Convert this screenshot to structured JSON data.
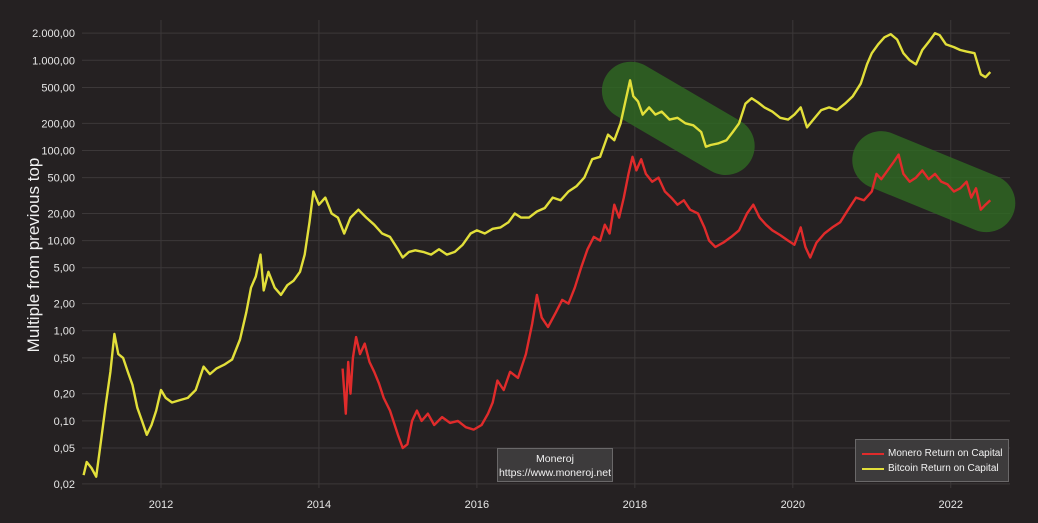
{
  "chart_data": {
    "type": "line",
    "title": "",
    "ylabel": "Multiple from previous top",
    "xlabel": "",
    "yscale": "log",
    "ylim": [
      0.018,
      2800
    ],
    "xlim": [
      2011.0,
      2022.75
    ],
    "y_ticks": [
      {
        "value": 2000,
        "label": "2.000,00"
      },
      {
        "value": 1000,
        "label": "1.000,00"
      },
      {
        "value": 500,
        "label": "500,00"
      },
      {
        "value": 200,
        "label": "200,00"
      },
      {
        "value": 100,
        "label": "100,00"
      },
      {
        "value": 50,
        "label": "50,00"
      },
      {
        "value": 20,
        "label": "20,00"
      },
      {
        "value": 10,
        "label": "10,00"
      },
      {
        "value": 5,
        "label": "5,00"
      },
      {
        "value": 2,
        "label": "2,00"
      },
      {
        "value": 1,
        "label": "1,00"
      },
      {
        "value": 0.5,
        "label": "0,50"
      },
      {
        "value": 0.2,
        "label": "0,20"
      },
      {
        "value": 0.1,
        "label": "0,10"
      },
      {
        "value": 0.05,
        "label": "0,05"
      },
      {
        "value": 0.02,
        "label": "0,02"
      }
    ],
    "x_ticks": [
      {
        "value": 2012,
        "label": "2012"
      },
      {
        "value": 2014,
        "label": "2014"
      },
      {
        "value": 2016,
        "label": "2016"
      },
      {
        "value": 2018,
        "label": "2018"
      },
      {
        "value": 2020,
        "label": "2020"
      },
      {
        "value": 2022,
        "label": "2022"
      }
    ],
    "grid": true,
    "legend_position": "bottom-right",
    "series": [
      {
        "name": "Monero Return on Capital",
        "color": "#e02b2b",
        "points": [
          [
            2014.3,
            0.38
          ],
          [
            2014.34,
            0.12
          ],
          [
            2014.37,
            0.45
          ],
          [
            2014.4,
            0.2
          ],
          [
            2014.43,
            0.5
          ],
          [
            2014.47,
            0.85
          ],
          [
            2014.52,
            0.55
          ],
          [
            2014.58,
            0.72
          ],
          [
            2014.64,
            0.45
          ],
          [
            2014.7,
            0.35
          ],
          [
            2014.76,
            0.26
          ],
          [
            2014.82,
            0.18
          ],
          [
            2014.9,
            0.13
          ],
          [
            2015.0,
            0.07
          ],
          [
            2015.06,
            0.05
          ],
          [
            2015.12,
            0.055
          ],
          [
            2015.18,
            0.1
          ],
          [
            2015.24,
            0.13
          ],
          [
            2015.3,
            0.1
          ],
          [
            2015.38,
            0.12
          ],
          [
            2015.46,
            0.09
          ],
          [
            2015.56,
            0.11
          ],
          [
            2015.66,
            0.095
          ],
          [
            2015.76,
            0.1
          ],
          [
            2015.86,
            0.085
          ],
          [
            2015.96,
            0.08
          ],
          [
            2016.06,
            0.09
          ],
          [
            2016.14,
            0.12
          ],
          [
            2016.2,
            0.16
          ],
          [
            2016.26,
            0.28
          ],
          [
            2016.34,
            0.22
          ],
          [
            2016.42,
            0.35
          ],
          [
            2016.52,
            0.3
          ],
          [
            2016.62,
            0.55
          ],
          [
            2016.7,
            1.2
          ],
          [
            2016.76,
            2.5
          ],
          [
            2016.82,
            1.4
          ],
          [
            2016.9,
            1.1
          ],
          [
            2017.0,
            1.6
          ],
          [
            2017.08,
            2.2
          ],
          [
            2017.16,
            2.0
          ],
          [
            2017.24,
            3.0
          ],
          [
            2017.32,
            5.0
          ],
          [
            2017.4,
            8.0
          ],
          [
            2017.48,
            11.0
          ],
          [
            2017.56,
            10.0
          ],
          [
            2017.62,
            15.0
          ],
          [
            2017.68,
            12.0
          ],
          [
            2017.74,
            25.0
          ],
          [
            2017.8,
            18.0
          ],
          [
            2017.86,
            30.0
          ],
          [
            2017.92,
            55.0
          ],
          [
            2017.97,
            85.0
          ],
          [
            2018.02,
            60.0
          ],
          [
            2018.08,
            80.0
          ],
          [
            2018.14,
            55.0
          ],
          [
            2018.22,
            45.0
          ],
          [
            2018.3,
            50.0
          ],
          [
            2018.38,
            35.0
          ],
          [
            2018.46,
            30.0
          ],
          [
            2018.54,
            25.0
          ],
          [
            2018.62,
            28.0
          ],
          [
            2018.7,
            22.0
          ],
          [
            2018.8,
            20.0
          ],
          [
            2018.88,
            14.0
          ],
          [
            2018.94,
            10.0
          ],
          [
            2019.02,
            8.5
          ],
          [
            2019.12,
            9.5
          ],
          [
            2019.22,
            11.0
          ],
          [
            2019.32,
            13.0
          ],
          [
            2019.42,
            20.0
          ],
          [
            2019.5,
            25.0
          ],
          [
            2019.58,
            18.0
          ],
          [
            2019.66,
            15.0
          ],
          [
            2019.74,
            13.0
          ],
          [
            2019.84,
            11.5
          ],
          [
            2019.94,
            10.0
          ],
          [
            2020.02,
            9.0
          ],
          [
            2020.1,
            14.0
          ],
          [
            2020.16,
            8.5
          ],
          [
            2020.22,
            6.5
          ],
          [
            2020.3,
            9.5
          ],
          [
            2020.4,
            12.0
          ],
          [
            2020.5,
            14.0
          ],
          [
            2020.6,
            16.0
          ],
          [
            2020.7,
            22.0
          ],
          [
            2020.8,
            30.0
          ],
          [
            2020.9,
            28.0
          ],
          [
            2021.0,
            35.0
          ],
          [
            2021.06,
            55.0
          ],
          [
            2021.12,
            48.0
          ],
          [
            2021.2,
            60.0
          ],
          [
            2021.28,
            75.0
          ],
          [
            2021.34,
            90.0
          ],
          [
            2021.4,
            55.0
          ],
          [
            2021.48,
            45.0
          ],
          [
            2021.56,
            50.0
          ],
          [
            2021.64,
            60.0
          ],
          [
            2021.72,
            48.0
          ],
          [
            2021.8,
            55.0
          ],
          [
            2021.88,
            45.0
          ],
          [
            2021.96,
            42.0
          ],
          [
            2022.04,
            35.0
          ],
          [
            2022.12,
            38.0
          ],
          [
            2022.2,
            45.0
          ],
          [
            2022.26,
            30.0
          ],
          [
            2022.32,
            38.0
          ],
          [
            2022.38,
            22.0
          ],
          [
            2022.44,
            25.0
          ],
          [
            2022.5,
            28.0
          ]
        ]
      },
      {
        "name": "Bitcoin Return on Capital",
        "color": "#e2df3a",
        "points": [
          [
            2011.02,
            0.025
          ],
          [
            2011.06,
            0.035
          ],
          [
            2011.12,
            0.03
          ],
          [
            2011.18,
            0.024
          ],
          [
            2011.24,
            0.06
          ],
          [
            2011.3,
            0.15
          ],
          [
            2011.36,
            0.35
          ],
          [
            2011.41,
            0.92
          ],
          [
            2011.46,
            0.55
          ],
          [
            2011.52,
            0.5
          ],
          [
            2011.58,
            0.35
          ],
          [
            2011.64,
            0.25
          ],
          [
            2011.7,
            0.14
          ],
          [
            2011.76,
            0.1
          ],
          [
            2011.82,
            0.07
          ],
          [
            2011.88,
            0.09
          ],
          [
            2011.94,
            0.13
          ],
          [
            2012.0,
            0.22
          ],
          [
            2012.06,
            0.18
          ],
          [
            2012.14,
            0.16
          ],
          [
            2012.24,
            0.17
          ],
          [
            2012.34,
            0.18
          ],
          [
            2012.44,
            0.22
          ],
          [
            2012.54,
            0.4
          ],
          [
            2012.62,
            0.33
          ],
          [
            2012.7,
            0.38
          ],
          [
            2012.8,
            0.42
          ],
          [
            2012.9,
            0.48
          ],
          [
            2013.0,
            0.8
          ],
          [
            2013.08,
            1.6
          ],
          [
            2013.14,
            3.0
          ],
          [
            2013.2,
            4.0
          ],
          [
            2013.26,
            7.0
          ],
          [
            2013.3,
            2.8
          ],
          [
            2013.36,
            4.5
          ],
          [
            2013.44,
            3.0
          ],
          [
            2013.52,
            2.5
          ],
          [
            2013.6,
            3.2
          ],
          [
            2013.68,
            3.6
          ],
          [
            2013.76,
            4.5
          ],
          [
            2013.82,
            7.0
          ],
          [
            2013.88,
            16.0
          ],
          [
            2013.93,
            35.0
          ],
          [
            2014.0,
            25.0
          ],
          [
            2014.08,
            30.0
          ],
          [
            2014.16,
            20.0
          ],
          [
            2014.24,
            18.0
          ],
          [
            2014.32,
            12.0
          ],
          [
            2014.4,
            18.0
          ],
          [
            2014.5,
            22.0
          ],
          [
            2014.6,
            18.0
          ],
          [
            2014.7,
            15.0
          ],
          [
            2014.8,
            12.0
          ],
          [
            2014.9,
            11.0
          ],
          [
            2015.0,
            8.0
          ],
          [
            2015.06,
            6.5
          ],
          [
            2015.14,
            7.5
          ],
          [
            2015.22,
            7.8
          ],
          [
            2015.32,
            7.5
          ],
          [
            2015.42,
            7.0
          ],
          [
            2015.52,
            8.0
          ],
          [
            2015.62,
            7.0
          ],
          [
            2015.72,
            7.5
          ],
          [
            2015.82,
            9.0
          ],
          [
            2015.92,
            12.0
          ],
          [
            2016.0,
            13.0
          ],
          [
            2016.1,
            12.0
          ],
          [
            2016.2,
            13.5
          ],
          [
            2016.3,
            14.0
          ],
          [
            2016.4,
            16.0
          ],
          [
            2016.48,
            20.0
          ],
          [
            2016.56,
            18.0
          ],
          [
            2016.66,
            18.0
          ],
          [
            2016.76,
            21.0
          ],
          [
            2016.86,
            23.0
          ],
          [
            2016.96,
            30.0
          ],
          [
            2017.06,
            28.0
          ],
          [
            2017.16,
            35.0
          ],
          [
            2017.26,
            40.0
          ],
          [
            2017.36,
            50.0
          ],
          [
            2017.46,
            80.0
          ],
          [
            2017.56,
            85.0
          ],
          [
            2017.66,
            150.0
          ],
          [
            2017.74,
            130.0
          ],
          [
            2017.82,
            200.0
          ],
          [
            2017.88,
            350.0
          ],
          [
            2017.94,
            600.0
          ],
          [
            2017.98,
            400.0
          ],
          [
            2018.04,
            350.0
          ],
          [
            2018.1,
            250.0
          ],
          [
            2018.18,
            300.0
          ],
          [
            2018.26,
            250.0
          ],
          [
            2018.34,
            270.0
          ],
          [
            2018.44,
            220.0
          ],
          [
            2018.54,
            230.0
          ],
          [
            2018.64,
            200.0
          ],
          [
            2018.74,
            190.0
          ],
          [
            2018.84,
            160.0
          ],
          [
            2018.9,
            110.0
          ],
          [
            2018.96,
            115.0
          ],
          [
            2019.06,
            120.0
          ],
          [
            2019.16,
            130.0
          ],
          [
            2019.24,
            160.0
          ],
          [
            2019.32,
            200.0
          ],
          [
            2019.4,
            330.0
          ],
          [
            2019.48,
            380.0
          ],
          [
            2019.56,
            340.0
          ],
          [
            2019.64,
            300.0
          ],
          [
            2019.74,
            270.0
          ],
          [
            2019.84,
            230.0
          ],
          [
            2019.94,
            220.0
          ],
          [
            2020.02,
            250.0
          ],
          [
            2020.1,
            300.0
          ],
          [
            2020.18,
            180.0
          ],
          [
            2020.26,
            220.0
          ],
          [
            2020.36,
            280.0
          ],
          [
            2020.46,
            300.0
          ],
          [
            2020.56,
            280.0
          ],
          [
            2020.66,
            330.0
          ],
          [
            2020.76,
            400.0
          ],
          [
            2020.86,
            550.0
          ],
          [
            2020.94,
            900.0
          ],
          [
            2021.0,
            1200.0
          ],
          [
            2021.08,
            1500.0
          ],
          [
            2021.16,
            1800.0
          ],
          [
            2021.24,
            1950.0
          ],
          [
            2021.32,
            1700.0
          ],
          [
            2021.4,
            1200.0
          ],
          [
            2021.48,
            1000.0
          ],
          [
            2021.56,
            900.0
          ],
          [
            2021.64,
            1300.0
          ],
          [
            2021.72,
            1600.0
          ],
          [
            2021.8,
            2000.0
          ],
          [
            2021.86,
            1900.0
          ],
          [
            2021.94,
            1500.0
          ],
          [
            2022.04,
            1400.0
          ],
          [
            2022.12,
            1300.0
          ],
          [
            2022.2,
            1250.0
          ],
          [
            2022.3,
            1200.0
          ],
          [
            2022.38,
            700.0
          ],
          [
            2022.44,
            650.0
          ],
          [
            2022.5,
            740.0
          ]
        ]
      }
    ],
    "highlight_regions": [
      {
        "from": [
          2017.95,
          460
        ],
        "to": [
          2019.15,
          112
        ],
        "color": "#2f6a22"
      },
      {
        "from": [
          2021.12,
          78
        ],
        "to": [
          2022.45,
          26
        ],
        "color": "#2f6a22"
      }
    ]
  },
  "watermark": {
    "line1": "Moneroj",
    "line2": "https://www.moneroj.net"
  },
  "legend": [
    {
      "label": "Monero Return on Capital",
      "color": "#e02b2b"
    },
    {
      "label": "Bitcoin Return on Capital",
      "color": "#e2df3a"
    }
  ]
}
